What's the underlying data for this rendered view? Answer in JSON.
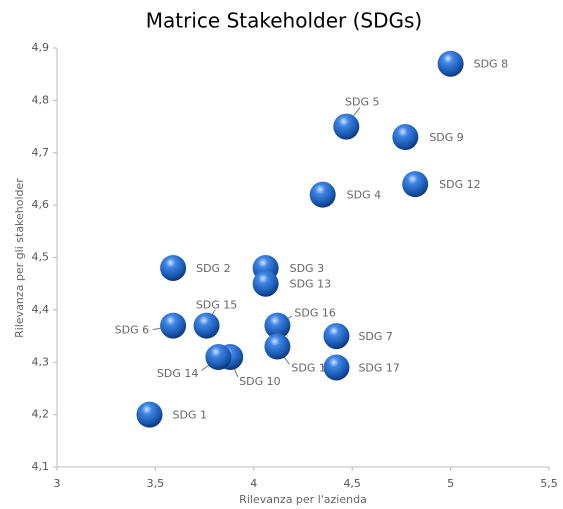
{
  "chart_data": {
    "type": "scatter",
    "title": "Matrice Stakeholder (SDGs)",
    "x_label": "Rilevanza per l'azienda",
    "y_label": "Rilevanza per gli stakeholder",
    "labels": [
      "SDG 8",
      "SDG 5",
      "SDG 9",
      "SDG 12",
      "SDG 4",
      "SDG 2",
      "SDG 3",
      "SDG 13",
      "SDG 15",
      "SDG 6",
      "SDG 16",
      "SDG 7",
      "SDG 11",
      "SDG 10",
      "SDG 14",
      "SDG 17",
      "SDG 1"
    ],
    "x": [
      5.0,
      4.47,
      4.77,
      4.82,
      4.35,
      3.59,
      4.06,
      4.06,
      3.76,
      3.59,
      4.12,
      4.42,
      4.12,
      3.88,
      3.82,
      4.42,
      3.47
    ],
    "values": [
      4.87,
      4.75,
      4.73,
      4.64,
      4.62,
      4.48,
      4.48,
      4.45,
      4.37,
      4.37,
      4.37,
      4.35,
      4.33,
      4.31,
      4.31,
      4.29,
      4.2
    ],
    "color": "#1f5fbf",
    "xlim": [
      3,
      5.5
    ],
    "xticks": [
      3,
      {
        "value": 3.5,
        "label": "3,5"
      },
      4,
      {
        "value": 4.5,
        "label": "4,5"
      },
      5,
      {
        "value": 5.5,
        "label": "5,5"
      }
    ],
    "ylim": [
      4.1,
      4.9
    ],
    "yticks": [
      {
        "value": 4.1,
        "label": "4,1"
      },
      {
        "value": 4.2,
        "label": "4,2"
      },
      {
        "value": 4.3,
        "label": "4,3"
      },
      {
        "value": 4.4,
        "label": "4,4"
      },
      {
        "value": 4.5,
        "label": "4,5"
      },
      {
        "value": 4.6,
        "label": "4,6"
      },
      {
        "value": 4.7,
        "label": "4,7"
      },
      {
        "value": 4.8,
        "label": "4,8"
      },
      {
        "value": 4.9,
        "label": "4,9"
      }
    ]
  }
}
